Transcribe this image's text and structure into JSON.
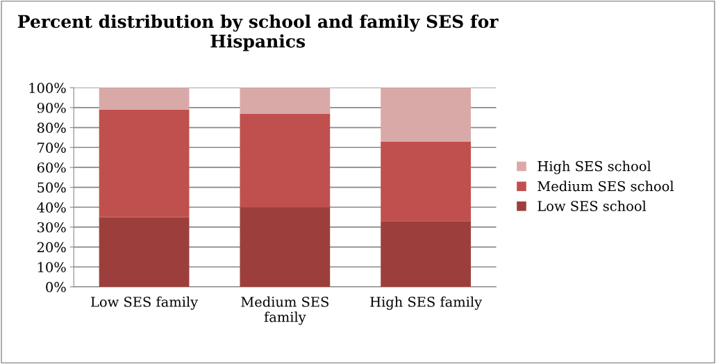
{
  "chart_data": {
    "type": "bar",
    "stacked": true,
    "title": "Percent distribution by school and family SES for Hispanics",
    "categories": [
      "Low SES family",
      "Medium SES family",
      "High SES family"
    ],
    "series": [
      {
        "name": "Low SES school",
        "color": "#9c3f3c",
        "values": [
          35,
          40,
          33
        ]
      },
      {
        "name": "Medium SES school",
        "color": "#c0504d",
        "values": [
          54,
          47,
          40
        ]
      },
      {
        "name": "High SES school",
        "color": "#d9a9a8",
        "values": [
          11,
          13,
          27
        ]
      }
    ],
    "ylim": [
      0,
      100
    ],
    "yticks": [
      {
        "value": 0,
        "label": "0%"
      },
      {
        "value": 10,
        "label": "10%"
      },
      {
        "value": 20,
        "label": "20%"
      },
      {
        "value": 30,
        "label": "30%"
      },
      {
        "value": 40,
        "label": "40%"
      },
      {
        "value": 50,
        "label": "50%"
      },
      {
        "value": 60,
        "label": "60%"
      },
      {
        "value": 70,
        "label": "70%"
      },
      {
        "value": 80,
        "label": "80%"
      },
      {
        "value": 90,
        "label": "90%"
      },
      {
        "value": 100,
        "label": "100%"
      }
    ],
    "grid": "y",
    "legend": "right"
  }
}
